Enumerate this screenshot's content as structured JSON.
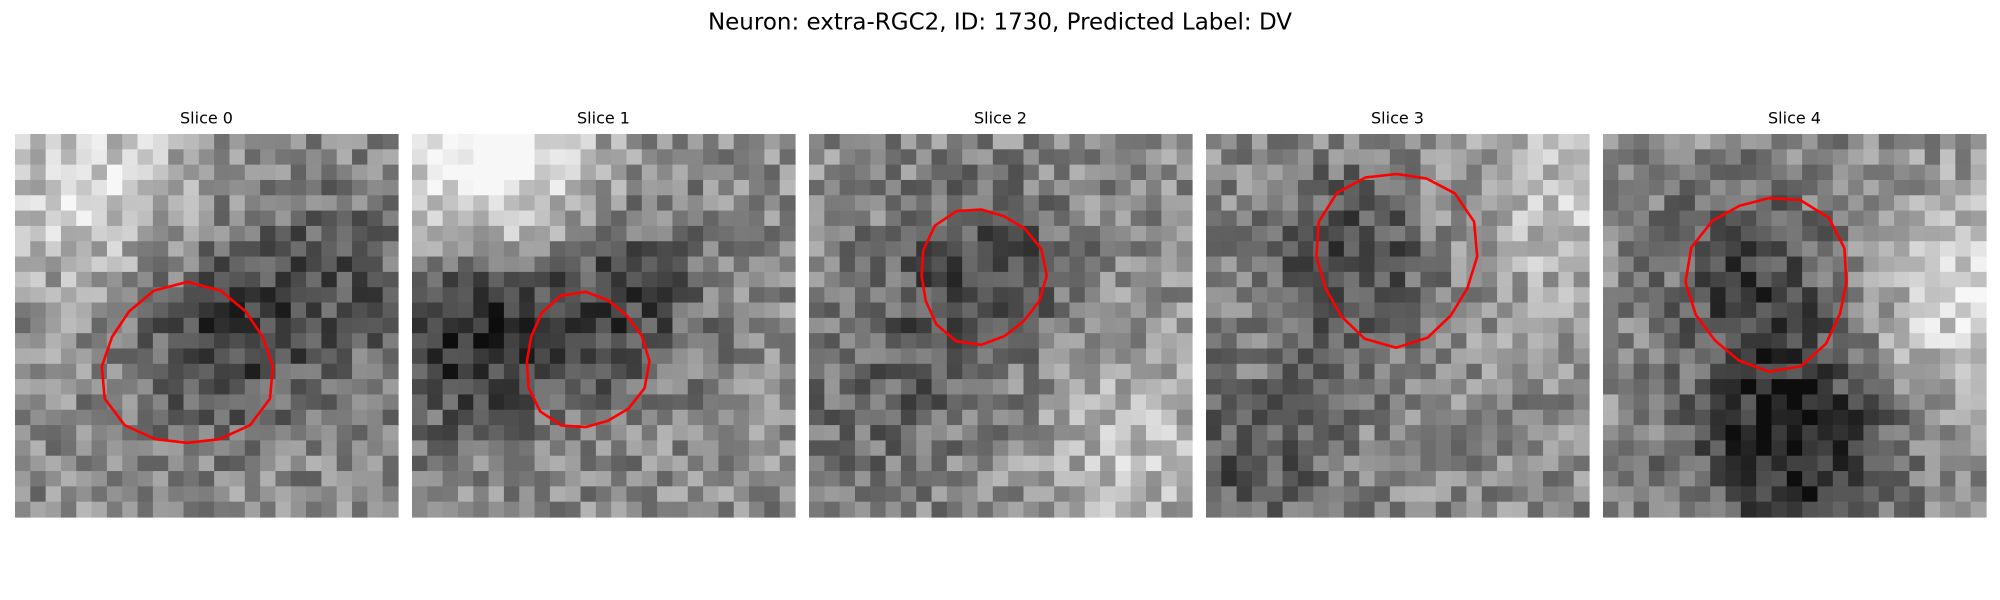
{
  "header": {
    "title": "Neuron: extra-RGC2, ID: 1730, Predicted Label: DV"
  },
  "panels": [
    {
      "title": "Slice 0"
    },
    {
      "title": "Slice 1"
    },
    {
      "title": "Slice 2"
    },
    {
      "title": "Slice 3"
    },
    {
      "title": "Slice 4"
    }
  ]
}
